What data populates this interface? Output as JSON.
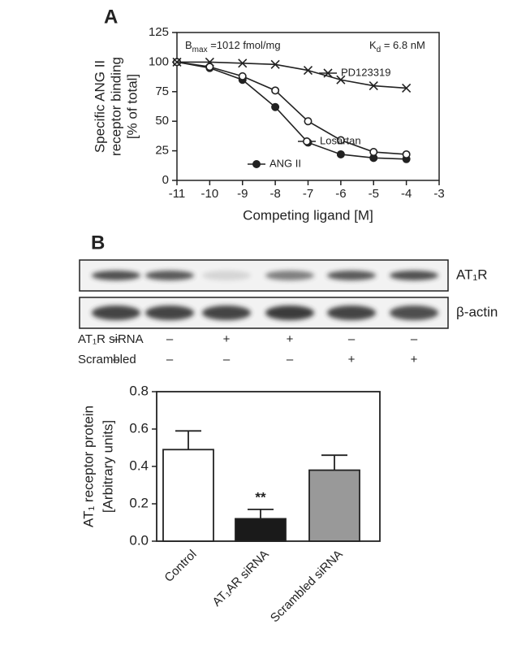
{
  "chart_data": [
    {
      "type": "line",
      "panel": "A",
      "x": [
        -11,
        -10,
        -9,
        -8,
        -7,
        -6,
        -5,
        -4
      ],
      "xlim": [
        -11,
        -3
      ],
      "xticks": [
        -11,
        -10,
        -9,
        -8,
        -7,
        -6,
        -5,
        -4,
        -3
      ],
      "ylim": [
        0,
        125
      ],
      "yticks": [
        0,
        25,
        50,
        75,
        100,
        125
      ],
      "xlabel": "Competing ligand [M]",
      "ylabel": [
        "Specific ANG II",
        "receptor binding",
        "[% of total]"
      ],
      "annotations": [
        {
          "text": "B",
          "sub": "max",
          "after": " =1012 fmol/mg"
        },
        {
          "text": "K",
          "sub": "d",
          "after": " = 6.8 nM"
        }
      ],
      "grid": false,
      "series": [
        {
          "name": "ANG II",
          "marker": "filled-circle",
          "color": "#222222",
          "values": [
            100,
            95,
            85,
            62,
            32,
            22,
            19,
            18
          ]
        },
        {
          "name": "Losartan",
          "marker": "open-circle",
          "color": "#222222",
          "values": [
            100,
            96,
            88,
            76,
            50,
            34,
            24,
            22
          ]
        },
        {
          "name": "PD123319",
          "marker": "x",
          "color": "#222222",
          "values": [
            100,
            100,
            99,
            98,
            93,
            85,
            80,
            78
          ]
        }
      ]
    },
    {
      "type": "bar",
      "panel": "",
      "categories": [
        "Control",
        "AT₁AR siRNA",
        "Scrambled siRNA"
      ],
      "values": [
        0.49,
        0.12,
        0.38
      ],
      "errors": [
        0.1,
        0.05,
        0.08
      ],
      "colors": [
        "#ffffff",
        "#1a1a1a",
        "#999999"
      ],
      "ylim": [
        0,
        0.8
      ],
      "yticks": [
        {
          "value": 0,
          "label": "0.0"
        },
        0.2,
        0.4,
        0.6,
        0.8
      ],
      "ylabel": [
        "AT₁ receptor protein",
        "[Arbitrary units]"
      ],
      "annotations": [
        {
          "text": "**",
          "category": 1
        }
      ],
      "grid": false
    }
  ],
  "blot": {
    "panel": "B",
    "rows": [
      {
        "label": "AT₁R"
      },
      {
        "label": "β-actin"
      }
    ],
    "conditions": [
      {
        "label": "AT₁R siRNA",
        "signs": [
          "–",
          "–",
          "+",
          "+",
          "–",
          "–"
        ]
      },
      {
        "label": "Scrambled",
        "signs": [
          "–",
          "–",
          "–",
          "–",
          "+",
          "+"
        ]
      }
    ]
  }
}
